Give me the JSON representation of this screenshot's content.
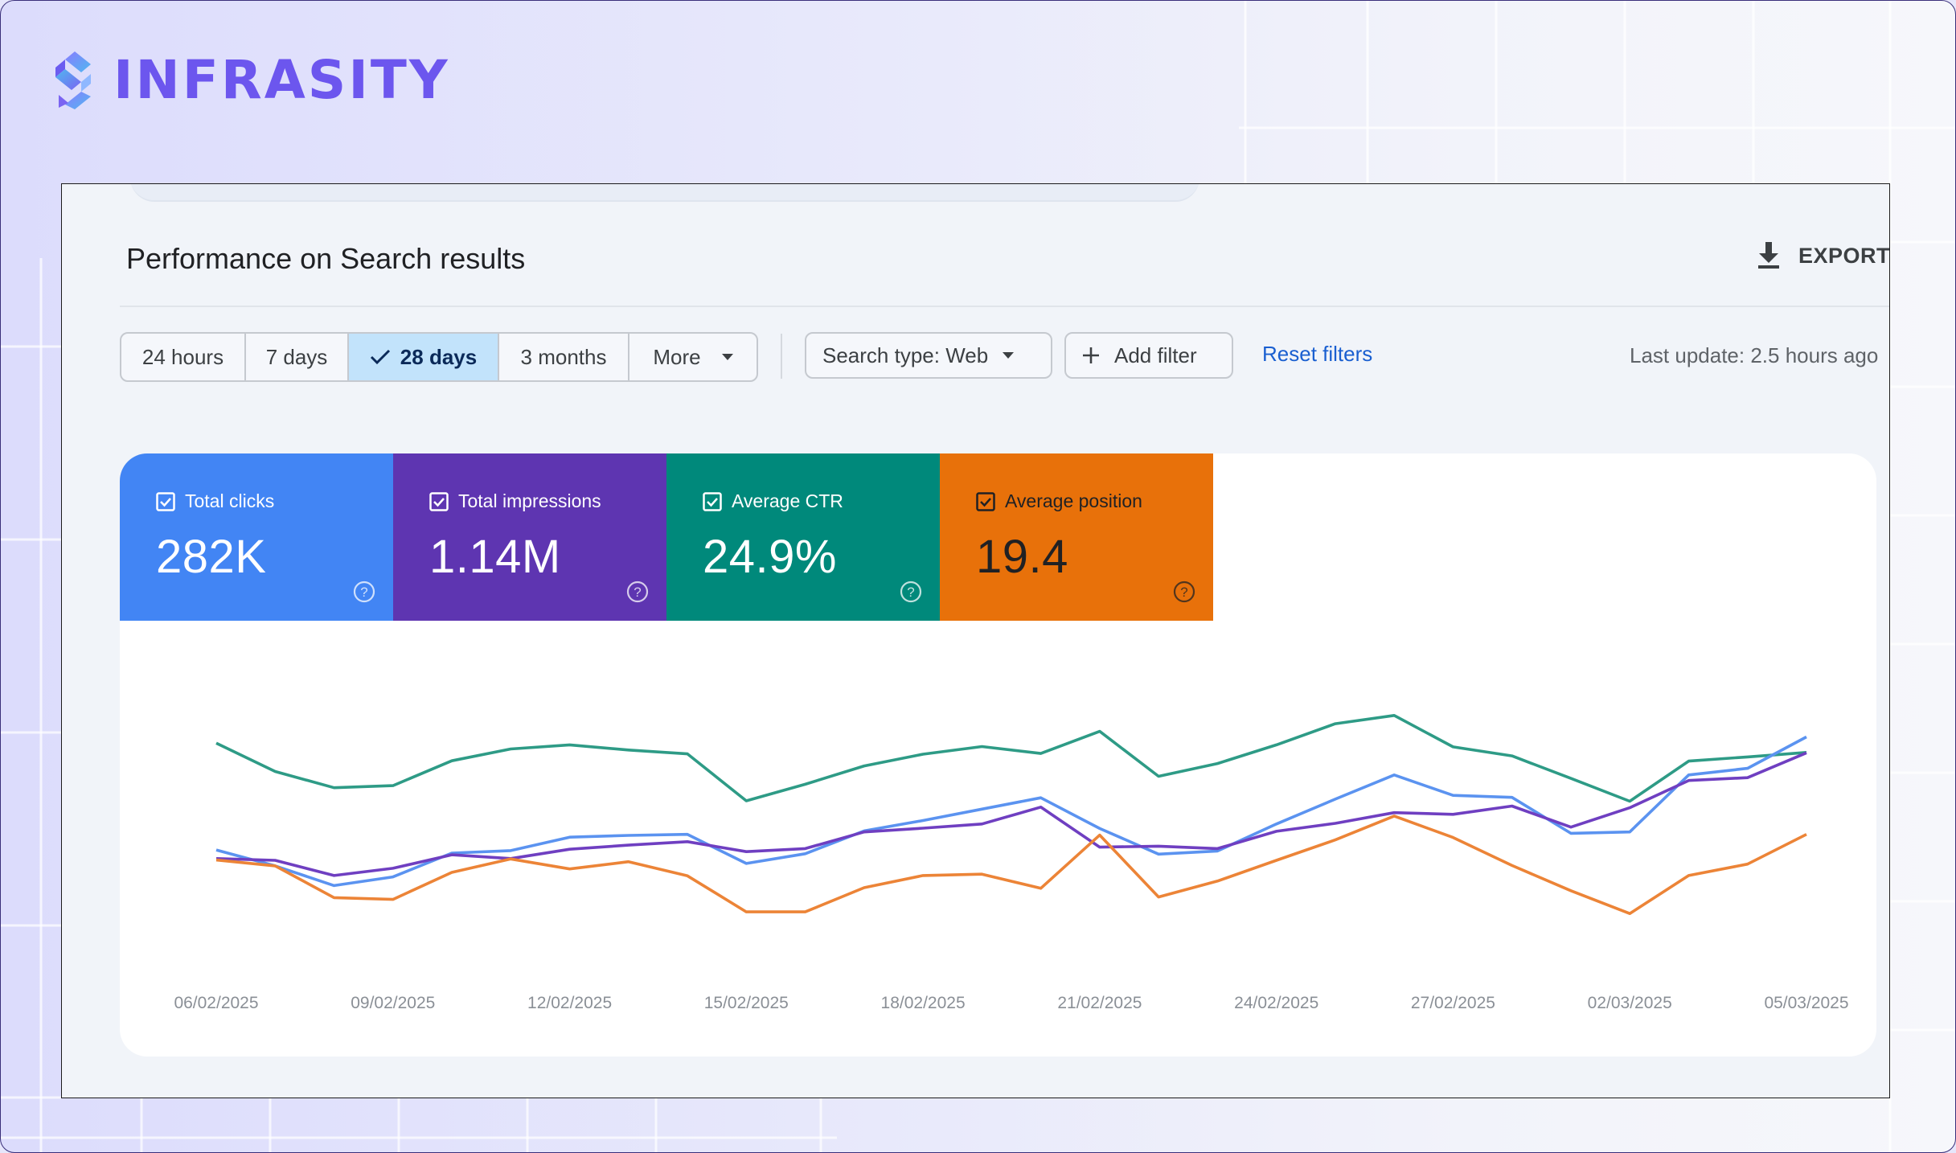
{
  "brand": {
    "name": "INFRASITY"
  },
  "header": {
    "title": "Performance on Search results",
    "export_label": "EXPORT"
  },
  "date_range": {
    "options": [
      {
        "label": "24 hours",
        "selected": false
      },
      {
        "label": "7 days",
        "selected": false
      },
      {
        "label": "28 days",
        "selected": true
      },
      {
        "label": "3 months",
        "selected": false
      },
      {
        "label": "More",
        "selected": false
      }
    ]
  },
  "filters": {
    "search_type_label": "Search type: Web",
    "add_filter_label": "Add filter",
    "reset_label": "Reset filters",
    "last_update": "Last update: 2.5 hours ago"
  },
  "metrics": [
    {
      "label": "Total clicks",
      "value": "282K",
      "color": "#4285f4",
      "text_color": "#ffffff",
      "checked": true
    },
    {
      "label": "Total impressions",
      "value": "1.14M",
      "color": "#5e35b1",
      "text_color": "#ffffff",
      "checked": true
    },
    {
      "label": "Average CTR",
      "value": "24.9%",
      "color": "#00897b",
      "text_color": "#ffffff",
      "checked": true
    },
    {
      "label": "Average position",
      "value": "19.4",
      "color": "#e8710a",
      "text_color": "#202124",
      "checked": true
    }
  ],
  "chart_data": {
    "type": "line",
    "x_tick_labels": [
      "06/02/2025",
      "09/02/2025",
      "12/02/2025",
      "15/02/2025",
      "18/02/2025",
      "21/02/2025",
      "24/02/2025",
      "27/02/2025",
      "02/03/2025",
      "05/03/2025"
    ],
    "y_axis": "hidden (each series normalized to its own scale)",
    "grid": false,
    "legend": "metric cards above chart",
    "series": [
      {
        "name": "Average CTR",
        "color": "#2e9b86",
        "values": [
          64.6,
          56.4,
          51.7,
          52.3,
          59.5,
          62.9,
          64.1,
          62.6,
          61.5,
          47.9,
          52.7,
          58.0,
          61.4,
          63.6,
          61.6,
          68.0,
          55.0,
          58.7,
          64.1,
          70.2,
          72.6,
          63.5,
          60.9,
          54.4,
          47.8,
          59.4,
          60.6,
          61.9
        ]
      },
      {
        "name": "Total clicks",
        "color": "#5b93f0",
        "values": [
          33.7,
          29.1,
          23.4,
          25.9,
          32.8,
          33.5,
          37.4,
          37.9,
          38.2,
          29.8,
          32.6,
          39.2,
          42.2,
          45.5,
          48.8,
          39.9,
          32.5,
          33.4,
          41.2,
          48.4,
          55.4,
          49.5,
          48.9,
          38.5,
          38.9,
          55.4,
          57.3,
          66.4
        ]
      },
      {
        "name": "Total impressions",
        "color": "#6f3fc1",
        "values": [
          31.2,
          30.7,
          26.3,
          28.4,
          32.3,
          31.2,
          33.9,
          35.1,
          36.1,
          33.2,
          34.1,
          38.9,
          40.0,
          41.2,
          46.1,
          34.5,
          34.8,
          34.1,
          39.1,
          41.4,
          44.5,
          44.0,
          46.4,
          40.3,
          45.9,
          53.8,
          54.6,
          61.8
        ]
      },
      {
        "name": "Average position",
        "color": "#ec8437",
        "values": [
          30.8,
          29.1,
          19.9,
          19.4,
          27.2,
          31.1,
          28.2,
          30.3,
          26.2,
          15.8,
          15.8,
          22.8,
          26.3,
          26.7,
          22.6,
          38.0,
          20.1,
          24.7,
          30.7,
          36.6,
          43.5,
          37.3,
          29.2,
          21.9,
          15.3,
          26.3,
          29.6,
          38.2
        ]
      }
    ]
  }
}
